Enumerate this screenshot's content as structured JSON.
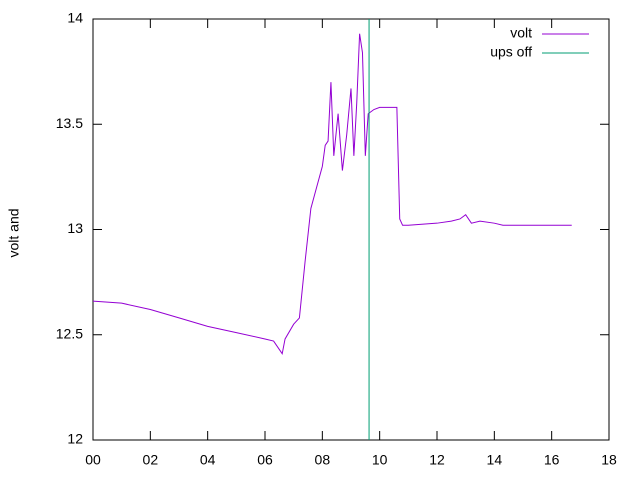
{
  "chart_data": {
    "type": "line",
    "ylabel": "volt and",
    "series": [
      {
        "name": "volt",
        "color": "#9400d3",
        "x": [
          0,
          1,
          2,
          3,
          4,
          5,
          6,
          6.3,
          6.6,
          6.7,
          7.0,
          7.2,
          7.4,
          7.6,
          7.8,
          8.0,
          8.1,
          8.2,
          8.3,
          8.4,
          8.55,
          8.7,
          8.85,
          9.0,
          9.1,
          9.2,
          9.3,
          9.4,
          9.5,
          9.6,
          9.8,
          10.0,
          10.6,
          10.7,
          10.8,
          11,
          12,
          12.5,
          12.8,
          13,
          13.2,
          13.5,
          14,
          14.3,
          16.7
        ],
        "values": [
          12.66,
          12.65,
          12.62,
          12.58,
          12.54,
          12.51,
          12.48,
          12.47,
          12.41,
          12.48,
          12.55,
          12.58,
          12.85,
          13.1,
          13.2,
          13.3,
          13.4,
          13.42,
          13.7,
          13.35,
          13.55,
          13.28,
          13.45,
          13.67,
          13.35,
          13.6,
          13.93,
          13.84,
          13.35,
          13.55,
          13.57,
          13.58,
          13.58,
          13.05,
          13.02,
          13.02,
          13.03,
          13.04,
          13.05,
          13.07,
          13.03,
          13.04,
          13.03,
          13.02,
          13.02
        ]
      },
      {
        "name": "ups off",
        "color": "#009e73",
        "x": [
          9.63,
          9.63
        ],
        "values": [
          12,
          14
        ]
      }
    ],
    "xlim": [
      0,
      18
    ],
    "xticks": [
      {
        "value": 0,
        "label": "00"
      },
      {
        "value": 2,
        "label": "02"
      },
      {
        "value": 4,
        "label": "04"
      },
      {
        "value": 6,
        "label": "06"
      },
      {
        "value": 8,
        "label": "08"
      },
      {
        "value": 10,
        "label": "10"
      },
      {
        "value": 12,
        "label": "12"
      },
      {
        "value": 14,
        "label": "14"
      },
      {
        "value": 16,
        "label": "16"
      },
      {
        "value": 18,
        "label": "18"
      }
    ],
    "ylim": [
      12,
      14
    ],
    "yticks": [
      12,
      12.5,
      13,
      13.5,
      14
    ],
    "legend": "top-right"
  }
}
